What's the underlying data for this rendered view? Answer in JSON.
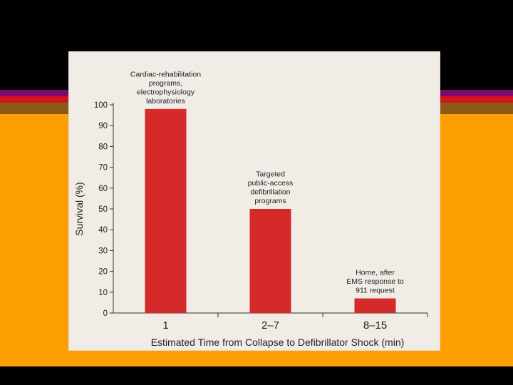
{
  "slide": {
    "background": "#000000",
    "stripe_colors": [
      "#7b0c6e",
      "#d0151c",
      "#8a5a14"
    ],
    "panel_color": "#fe9f00"
  },
  "chart_data": {
    "type": "bar",
    "categories": [
      "1",
      "2–7",
      "8–15"
    ],
    "values": [
      98,
      50,
      7
    ],
    "xlabel": "Estimated Time from Collapse to Defibrillator Shock (min)",
    "ylabel": "Survival (%)",
    "ylim": [
      0,
      100
    ],
    "yticks": [
      0,
      10,
      20,
      30,
      40,
      50,
      60,
      70,
      80,
      90,
      100
    ],
    "bar_color": "#d42a2a",
    "grid": false,
    "annotations": [
      {
        "lines": [
          "Cardiac-rehabilitation",
          "programs,",
          "electrophysiology",
          "laboratories"
        ]
      },
      {
        "lines": [
          "Targeted",
          "public-access",
          "defibrillation",
          "programs"
        ]
      },
      {
        "lines": [
          "Home, after",
          "EMS response to",
          "911 request"
        ]
      }
    ]
  }
}
